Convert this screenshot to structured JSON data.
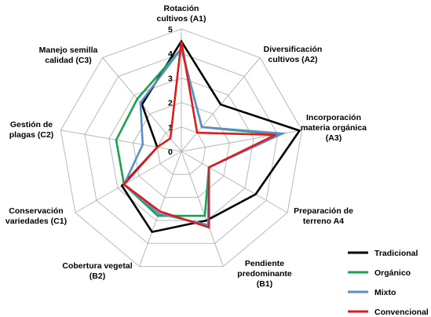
{
  "chart_data": {
    "type": "radar",
    "axes": [
      {
        "id": "A1",
        "lines": [
          "Rotación",
          "cultivos (A1)"
        ]
      },
      {
        "id": "A2",
        "lines": [
          "Diversificación",
          "cultivos (A2)"
        ]
      },
      {
        "id": "A3",
        "lines": [
          "Incorporación",
          "materia orgánica",
          "(A3)"
        ]
      },
      {
        "id": "A4",
        "lines": [
          "Preparación de",
          "terreno A4"
        ]
      },
      {
        "id": "B1",
        "lines": [
          "Pendiente",
          "predominante",
          "(B1)"
        ]
      },
      {
        "id": "B2",
        "lines": [
          "Cobertura vegetal",
          "(B2)"
        ]
      },
      {
        "id": "C1",
        "lines": [
          "Conservación",
          "variedades  (C1)"
        ]
      },
      {
        "id": "C2",
        "lines": [
          "Gestión de",
          "plagas (C2)"
        ]
      },
      {
        "id": "C3",
        "lines": [
          "Manejo semilla",
          "calidad  (C3)"
        ]
      }
    ],
    "rlim": [
      0,
      5
    ],
    "ticks": [
      "0",
      "1",
      "2",
      "3",
      "4",
      "5"
    ],
    "grid": true,
    "legend_position": "bottom-right",
    "series": [
      {
        "name": "Tradicional",
        "color": "#000000",
        "values": [
          4.5,
          2.5,
          4.9,
          3.5,
          3.0,
          3.5,
          2.8,
          1.0,
          2.5
        ]
      },
      {
        "name": "Orgánico",
        "color": "#16a34a",
        "values": [
          4.2,
          1.3,
          4.0,
          1.3,
          2.8,
          2.8,
          2.7,
          2.7,
          2.8
        ]
      },
      {
        "name": "Mixto",
        "color": "#5b8fc9",
        "values": [
          4.2,
          1.3,
          4.2,
          1.3,
          3.2,
          2.7,
          2.7,
          1.6,
          2.6
        ]
      },
      {
        "name": "Convencional",
        "color": "#e31a1c",
        "values": [
          4.5,
          1.0,
          3.9,
          1.3,
          3.3,
          2.6,
          2.7,
          1.0,
          0.7
        ]
      }
    ]
  }
}
